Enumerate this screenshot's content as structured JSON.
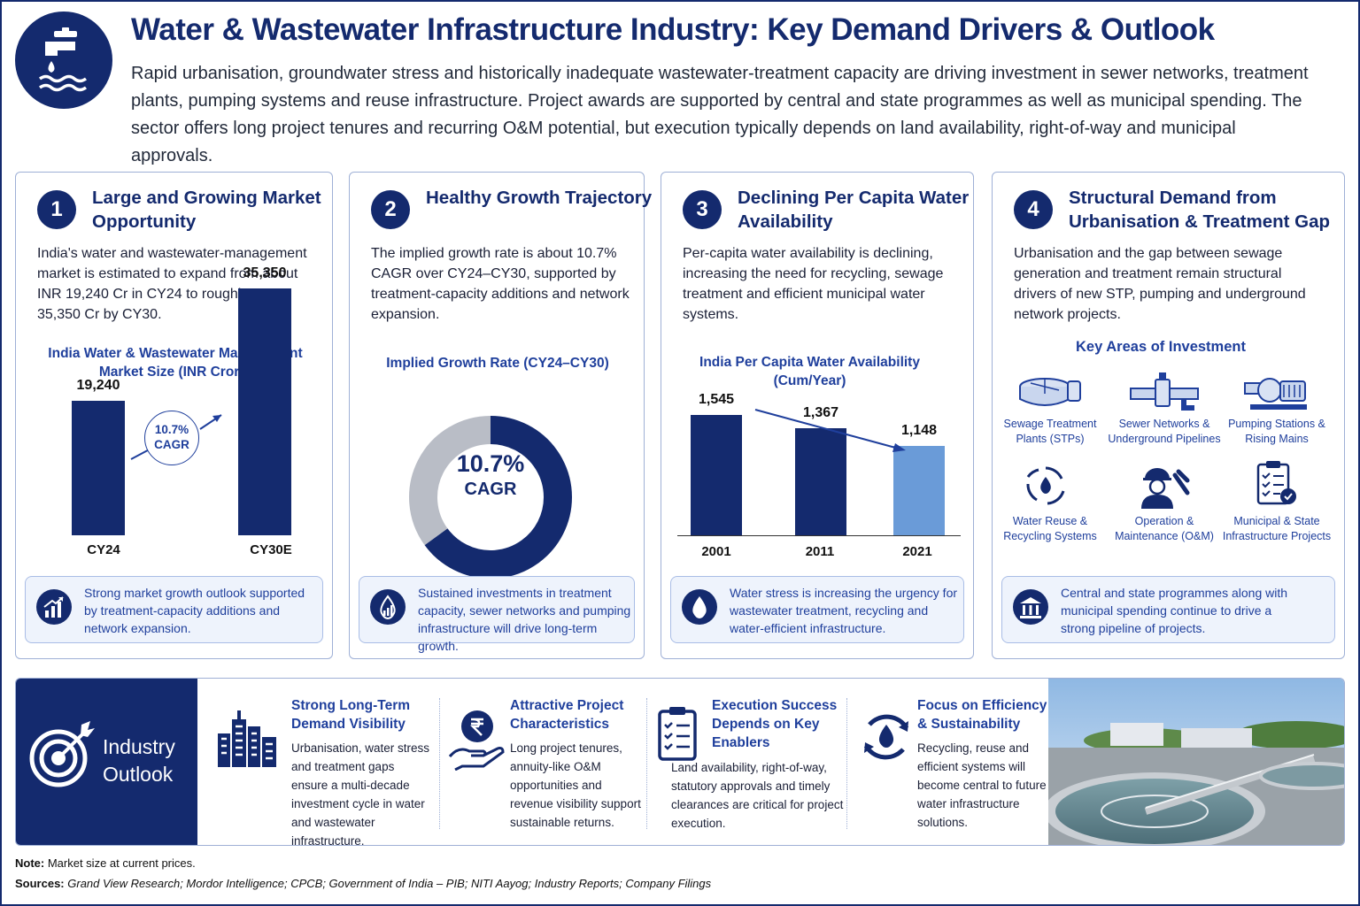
{
  "header": {
    "title": "Water & Wastewater Infrastructure Industry: Key Demand Drivers & Outlook",
    "subtitle": "Rapid urbanisation, groundwater stress and historically inadequate wastewater-treatment capacity are driving investment in sewer networks, treatment plants, pumping systems and reuse infrastructure. Project awards are supported by central and state programmes as well as municipal spending. The sector offers long project tenures and recurring O&M potential, but execution typically depends on land availability, right-of-way and municipal approvals."
  },
  "cards": [
    {
      "number": "1",
      "title": "Large and Growing Market Opportunity",
      "body": "India's water and wastewater-management market is estimated to expand from about INR 19,240 Cr in CY24 to roughly INR 35,350 Cr by CY30.",
      "chart_title": "India Water & Wastewater Management Market Size (INR Crore)",
      "cagr_badge": "10.7% CAGR",
      "note": "Strong market growth outlook supported by treatment-capacity additions and network expansion."
    },
    {
      "number": "2",
      "title": "Healthy Growth Trajectory",
      "body": "The implied growth rate is about 10.7% CAGR over CY24–CY30, supported by treatment-capacity additions and network expansion.",
      "chart_title": "Implied Growth Rate (CY24–CY30)",
      "donut_value": "10.7%",
      "donut_label": "CAGR",
      "note": "Sustained investments in treatment capacity, sewer networks and pumping infrastructure will drive long-term growth."
    },
    {
      "number": "3",
      "title": "Declining Per Capita Water Availability",
      "body": "Per-capita water availability is declining, increasing the need for recycling, sewage treatment and efficient municipal water systems.",
      "chart_title": "India Per Capita Water Availability (Cum/Year)",
      "note": "Water stress is increasing the urgency for wastewater treatment, recycling and water-efficient infrastructure."
    },
    {
      "number": "4",
      "title": "Structural Demand from Urbanisation & Treatment Gap",
      "body": "Urbanisation and the gap between sewage generation and treatment remain structural drivers of new STP, pumping and underground network projects.",
      "investment_title": "Key Areas of Investment",
      "investments": [
        {
          "label": "Sewage Treatment Plants (STPs)",
          "icon": "sewage-treatment-plant-icon"
        },
        {
          "label": "Sewer Networks & Underground Pipelines",
          "icon": "pipeline-icon"
        },
        {
          "label": "Pumping Stations & Rising Mains",
          "icon": "pump-icon"
        },
        {
          "label": "Water Reuse & Recycling Systems",
          "icon": "water-recycle-icon"
        },
        {
          "label": "Operation & Maintenance (O&M)",
          "icon": "worker-wrench-icon"
        },
        {
          "label": "Municipal & State Infrastructure Projects",
          "icon": "checklist-icon"
        }
      ],
      "note": "Central and state programmes along with municipal spending continue to drive a strong pipeline of projects."
    }
  ],
  "chart_data": [
    {
      "type": "bar",
      "title": "India Water & Wastewater Management Market Size (INR Crore)",
      "categories": [
        "CY24",
        "CY30E"
      ],
      "values": [
        19240,
        35350
      ],
      "value_labels": [
        "19,240",
        "35,350"
      ],
      "annotation": "10.7% CAGR",
      "ylim": [
        0,
        38000
      ]
    },
    {
      "type": "pie",
      "title": "Implied Growth Rate (CY24–CY30)",
      "center_label": "10.7% CAGR",
      "slices": [
        {
          "label": "filled",
          "value": 65
        },
        {
          "label": "remainder",
          "value": 35
        }
      ]
    },
    {
      "type": "bar",
      "title": "India Per Capita Water Availability (Cum/Year)",
      "categories": [
        "2001",
        "2011",
        "2021"
      ],
      "values": [
        1545,
        1367,
        1148
      ],
      "value_labels": [
        "1,545",
        "1,367",
        "1,148"
      ],
      "ylim": [
        0,
        1700
      ]
    }
  ],
  "outlook": {
    "title_line1": "Industry",
    "title_line2": "Outlook",
    "columns": [
      {
        "title": "Strong Long-Term Demand Visibility",
        "body": "Urbanisation, water stress and treatment gaps ensure a multi-decade investment cycle in water and wastewater infrastructure.",
        "icon": "city-buildings-icon"
      },
      {
        "title": "Attractive Project Characteristics",
        "body": "Long project tenures, annuity-like O&M opportunities and revenue visibility support sustainable returns.",
        "icon": "rupee-hand-icon"
      },
      {
        "title": "Execution Success Depends on Key Enablers",
        "body": "Land availability, right-of-way, statutory approvals and timely clearances are critical for project execution.",
        "icon": "clipboard-checklist-icon"
      },
      {
        "title": "Focus on Efficiency & Sustainability",
        "body": "Recycling, reuse and efficient systems will become central to future water infrastructure solutions.",
        "icon": "water-cycle-icon"
      }
    ]
  },
  "footer": {
    "note_label": "Note:",
    "note_text": "Market size at current prices.",
    "sources_label": "Sources:",
    "sources_text": "Grand View Research;  Mordor Intelligence;  CPCB;  Government of India – PIB;  NITI Aayog;  Industry Reports;  Company Filings"
  },
  "colors": {
    "navy": "#142a6e",
    "accent_blue": "#1f3f9c",
    "light_bar": "#6a9bd8",
    "grey_slice": "#b9bdc6"
  }
}
